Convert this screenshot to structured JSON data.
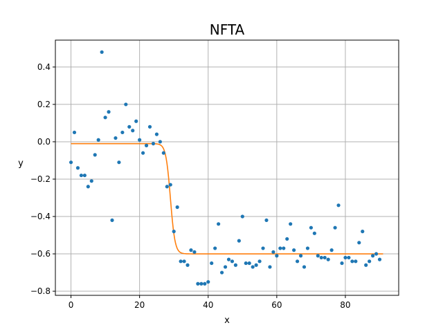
{
  "chart_data": {
    "type": "scatter",
    "title": "NFTA",
    "xlabel": "x",
    "ylabel": "y",
    "xlim": [
      -4.55,
      95.55
    ],
    "ylim": [
      -0.822,
      0.544
    ],
    "xticks": [
      0,
      20,
      40,
      60,
      80
    ],
    "yticks": [
      -0.8,
      -0.6,
      -0.4,
      -0.2,
      0.0,
      0.2,
      0.4
    ],
    "xtick_labels": [
      "0",
      "20",
      "40",
      "60",
      "80"
    ],
    "ytick_labels": [
      "−0.8",
      "−0.6",
      "−0.4",
      "−0.2",
      "0.0",
      "0.2",
      "0.4"
    ],
    "grid": true,
    "series": [
      {
        "kind": "scatter",
        "color": "#1f77b4",
        "x": [
          0,
          1,
          2,
          3,
          4,
          5,
          6,
          7,
          8,
          9,
          10,
          11,
          12,
          13,
          14,
          15,
          16,
          17,
          18,
          19,
          20,
          21,
          22,
          23,
          24,
          25,
          26,
          27,
          28,
          29,
          30,
          31,
          32,
          33,
          34,
          35,
          36,
          37,
          38,
          39,
          40,
          41,
          42,
          43,
          44,
          45,
          46,
          47,
          48,
          49,
          50,
          51,
          52,
          53,
          54,
          55,
          56,
          57,
          58,
          59,
          60,
          61,
          62,
          63,
          64,
          65,
          66,
          67,
          68,
          69,
          70,
          71,
          72,
          73,
          74,
          75,
          76,
          77,
          78,
          79,
          80,
          81,
          82,
          83,
          84,
          85,
          86,
          87,
          88,
          89,
          90
        ],
        "y": [
          -0.11,
          0.05,
          -0.14,
          -0.18,
          -0.18,
          -0.24,
          -0.21,
          -0.07,
          0.01,
          0.48,
          0.13,
          0.16,
          -0.42,
          0.02,
          -0.11,
          0.05,
          0.2,
          0.08,
          0.06,
          0.11,
          0.01,
          -0.06,
          -0.02,
          0.08,
          -0.01,
          0.04,
          0.0,
          -0.06,
          -0.24,
          -0.23,
          -0.48,
          -0.35,
          -0.64,
          -0.64,
          -0.66,
          -0.58,
          -0.59,
          -0.76,
          -0.76,
          -0.76,
          -0.75,
          -0.65,
          -0.57,
          -0.44,
          -0.7,
          -0.67,
          -0.63,
          -0.64,
          -0.66,
          -0.53,
          -0.4,
          -0.65,
          -0.65,
          -0.67,
          -0.66,
          -0.64,
          -0.57,
          -0.42,
          -0.67,
          -0.59,
          -0.61,
          -0.57,
          -0.57,
          -0.52,
          -0.44,
          -0.58,
          -0.64,
          -0.61,
          -0.67,
          -0.57,
          -0.46,
          -0.49,
          -0.61,
          -0.62,
          -0.62,
          -0.63,
          -0.58,
          -0.46,
          -0.34,
          -0.65,
          -0.62,
          -0.62,
          -0.64,
          -0.64,
          -0.54,
          -0.48,
          -0.66,
          -0.64,
          -0.61,
          -0.6,
          -0.63
        ]
      },
      {
        "kind": "line",
        "color": "#ff7f0e",
        "model": {
          "upper": -0.01,
          "lower": -0.6,
          "midpoint": 29.0,
          "rate": 1.5
        },
        "x_range": [
          0,
          91
        ]
      }
    ]
  }
}
